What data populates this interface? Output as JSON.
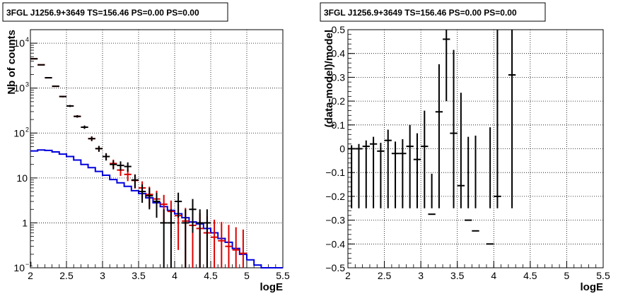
{
  "chart_data": [
    {
      "type": "histogram",
      "title": "3FGL J1256.9+3649 TS=156.46 PS=0.00 PS=0.00",
      "xlabel": "logE",
      "ylabel": "Nb of counts",
      "xlim": [
        2,
        5.5
      ],
      "ylim": [
        0.1,
        20000
      ],
      "yscale": "log",
      "grid": true,
      "x_ticks": [
        "2",
        "2.5",
        "3",
        "3.5",
        "4",
        "4.5",
        "5",
        "5.5"
      ],
      "y_ticks": [
        {
          "v": 0.1,
          "label": "10",
          "sup": "−1"
        },
        {
          "v": 1,
          "label": "1",
          "sup": ""
        },
        {
          "v": 10,
          "label": "10",
          "sup": ""
        },
        {
          "v": 100,
          "label": "10",
          "sup": "2"
        },
        {
          "v": 1000,
          "label": "10",
          "sup": "3"
        },
        {
          "v": 10000,
          "label": "10",
          "sup": "4"
        }
      ],
      "series": [
        {
          "color": "#0000dd",
          "style": "step",
          "x": [
            2.0,
            2.1,
            2.2,
            2.3,
            2.4,
            2.5,
            2.6,
            2.7,
            2.8,
            2.9,
            3.0,
            3.1,
            3.2,
            3.3,
            3.4,
            3.5,
            3.6,
            3.7,
            3.8,
            3.9,
            4.0,
            4.1,
            4.2,
            4.3,
            4.4,
            4.5,
            4.6,
            4.7,
            4.8,
            4.9,
            5.0,
            5.1,
            5.2,
            5.3,
            5.4
          ],
          "values": [
            40,
            42,
            41,
            38,
            34,
            30,
            25,
            20,
            17,
            14,
            11.5,
            9.2,
            7.8,
            6.5,
            5.2,
            4.5,
            3.6,
            2.8,
            2.3,
            1.9,
            1.6,
            1.3,
            1.05,
            0.95,
            0.75,
            0.6,
            0.45,
            0.37,
            0.27,
            0.2,
            0.15,
            0.115,
            0.1,
            0.1,
            0.1
          ]
        },
        {
          "color": "#dd0000",
          "style": "errorbar",
          "x": [
            2.05,
            2.15,
            2.25,
            2.35,
            2.45,
            2.55,
            2.65,
            2.75,
            2.85,
            2.95,
            3.05,
            3.15,
            3.25,
            3.35,
            3.45,
            3.55,
            3.65,
            3.75,
            3.85,
            3.95,
            4.05,
            4.15,
            4.25,
            4.35,
            4.45,
            4.55,
            4.65,
            4.75,
            4.85,
            4.95
          ],
          "values": [
            4500,
            3300,
            1700,
            1100,
            650,
            400,
            235,
            135,
            75,
            45,
            30,
            21,
            15,
            12,
            8.8,
            6.0,
            4.3,
            3.4,
            2.6,
            1.8,
            1.45,
            1.1,
            0.88,
            0.75,
            0.6,
            0.48,
            0.4,
            0.3,
            0.25,
            0.21
          ],
          "err_low": [
            67,
            57,
            41,
            33,
            25,
            20,
            15,
            11.6,
            8.7,
            6.7,
            5.5,
            4.6,
            3.9,
            3.5,
            3.0,
            2.4,
            2.1,
            1.8,
            1.6,
            1.34,
            1.2,
            1.05,
            0.88,
            0.75,
            0.6,
            0.48,
            0.4,
            0.3,
            0.25,
            0.21
          ],
          "err_high": [
            67,
            57,
            41,
            33,
            25,
            20,
            15,
            11.6,
            8.7,
            6.7,
            5.5,
            4.6,
            3.9,
            3.5,
            3.0,
            2.4,
            2.1,
            1.8,
            1.6,
            1.34,
            1.2,
            1.05,
            0.95,
            0.9,
            0.8,
            0.7,
            0.65,
            0.6,
            0.55,
            0.5
          ]
        },
        {
          "color": "#000000",
          "style": "errorbar",
          "x": [
            2.05,
            2.15,
            2.25,
            2.35,
            2.45,
            2.55,
            2.65,
            2.75,
            2.85,
            2.95,
            3.05,
            3.15,
            3.25,
            3.35,
            3.45,
            3.55,
            3.65,
            3.75,
            3.85,
            3.95,
            4.05,
            4.15,
            4.25,
            4.35,
            4.45
          ],
          "values": [
            4500,
            3300,
            1700,
            1100,
            650,
            400,
            235,
            135,
            75,
            45,
            30,
            20,
            19,
            18,
            9,
            5,
            4,
            3,
            1,
            1,
            3,
            1,
            2,
            1,
            1
          ],
          "err_low": [
            67,
            57,
            41,
            33,
            25,
            20,
            15,
            11.6,
            8.7,
            6.7,
            5.5,
            4.5,
            4.4,
            4.2,
            3.0,
            2.2,
            2.0,
            1.7,
            0.99,
            0.99,
            1.7,
            0.99,
            1.4,
            0.99,
            0.99
          ],
          "err_high": [
            67,
            57,
            41,
            33,
            25,
            20,
            15,
            11.6,
            8.7,
            6.7,
            5.5,
            4.5,
            4.4,
            4.2,
            3.0,
            2.2,
            2.0,
            1.7,
            1.0,
            1.0,
            1.7,
            1.0,
            1.4,
            1.0,
            1.0
          ]
        }
      ]
    },
    {
      "type": "errorbar",
      "title": "3FGL J1256.9+3649 TS=156.46 PS=0.00 PS=0.00",
      "xlabel": "logE",
      "ylabel": "(data-model)/model",
      "xlim": [
        2,
        5.5
      ],
      "ylim": [
        -0.5,
        0.5
      ],
      "grid": true,
      "x_ticks": [
        "2",
        "2.5",
        "3",
        "3.5",
        "4",
        "4.5",
        "5",
        "5.5"
      ],
      "y_ticks": [
        "−0.5",
        "−0.4",
        "−0.3",
        "−0.2",
        "−0.1",
        "0",
        "0.1",
        "0.2",
        "0.3",
        "0.4",
        "0.5"
      ],
      "series": [
        {
          "color": "#000000",
          "x": [
            2.05,
            2.15,
            2.25,
            2.35,
            2.45,
            2.55,
            2.65,
            2.75,
            2.85,
            2.95,
            3.05,
            3.15,
            3.25,
            3.35,
            3.45,
            3.55,
            3.65,
            3.75,
            3.95,
            4.05,
            4.25
          ],
          "values": [
            0.0,
            0.0,
            0.01,
            0.02,
            -0.01,
            0.035,
            -0.02,
            -0.02,
            0.01,
            -0.045,
            0.01,
            -0.275,
            0.155,
            0.46,
            0.065,
            -0.155,
            -0.3,
            -0.345,
            -0.4,
            -0.2,
            0.31
          ],
          "err_low": [
            0.015,
            0.02,
            0.025,
            0.03,
            0.035,
            0.045,
            0.05,
            0.06,
            0.09,
            0.11,
            0.15,
            0.17,
            0.2,
            0.26,
            0.35,
            0.6,
            0.6,
            0.6,
            0.6,
            0.6,
            0.8
          ],
          "err_high": [
            0.015,
            0.02,
            0.025,
            0.03,
            0.035,
            0.045,
            0.05,
            0.06,
            0.09,
            0.11,
            0.15,
            0.17,
            0.2,
            0.26,
            0.35,
            0.39,
            0.35,
            0.4,
            0.49,
            0.7,
            0.8
          ]
        }
      ]
    }
  ]
}
